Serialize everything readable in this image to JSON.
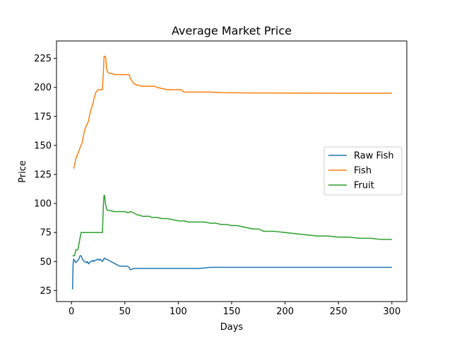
{
  "chart_data": {
    "type": "line",
    "title": "Average Market Price",
    "xlabel": "Days",
    "ylabel": "Price",
    "xlim": [
      -14,
      314
    ],
    "ylim": [
      15.5,
      240
    ],
    "xticks": [
      0,
      50,
      100,
      150,
      200,
      250,
      300
    ],
    "yticks": [
      25,
      50,
      75,
      100,
      125,
      150,
      175,
      200,
      225
    ],
    "grid": false,
    "legend_position": "center-right",
    "series": [
      {
        "name": "Raw Fish",
        "color": "#1f77b4",
        "points": [
          [
            1,
            26
          ],
          [
            1.5,
            47
          ],
          [
            2,
            52
          ],
          [
            3,
            51
          ],
          [
            4,
            49
          ],
          [
            5,
            50
          ],
          [
            6,
            51
          ],
          [
            7,
            52
          ],
          [
            8,
            55
          ],
          [
            9,
            55
          ],
          [
            10,
            53
          ],
          [
            11,
            51
          ],
          [
            12,
            50
          ],
          [
            14,
            49
          ],
          [
            15,
            50
          ],
          [
            16,
            48
          ],
          [
            17,
            49
          ],
          [
            18,
            50
          ],
          [
            19,
            50
          ],
          [
            20,
            51
          ],
          [
            21,
            50
          ],
          [
            22,
            51
          ],
          [
            23,
            51
          ],
          [
            24,
            52
          ],
          [
            25,
            52
          ],
          [
            26,
            51
          ],
          [
            27,
            52
          ],
          [
            28,
            51
          ],
          [
            29,
            50
          ],
          [
            30,
            52
          ],
          [
            31,
            53
          ],
          [
            32,
            52
          ],
          [
            33,
            52
          ],
          [
            35,
            51
          ],
          [
            37,
            50
          ],
          [
            39,
            49
          ],
          [
            41,
            48
          ],
          [
            43,
            47
          ],
          [
            45,
            46
          ],
          [
            47,
            46
          ],
          [
            50,
            46
          ],
          [
            52,
            46
          ],
          [
            54,
            45
          ],
          [
            55,
            43
          ],
          [
            56,
            43
          ],
          [
            58,
            44
          ],
          [
            60,
            44
          ],
          [
            62,
            44
          ],
          [
            65,
            44
          ],
          [
            70,
            44
          ],
          [
            75,
            44
          ],
          [
            80,
            44
          ],
          [
            85,
            44
          ],
          [
            88,
            44
          ],
          [
            90,
            44
          ],
          [
            95,
            44
          ],
          [
            100,
            44
          ],
          [
            105,
            44
          ],
          [
            108,
            44
          ],
          [
            110,
            44
          ],
          [
            120,
            44
          ],
          [
            130,
            45
          ],
          [
            140,
            45
          ],
          [
            150,
            45
          ],
          [
            160,
            45
          ],
          [
            170,
            45
          ],
          [
            180,
            45
          ],
          [
            190,
            45
          ],
          [
            200,
            45
          ],
          [
            220,
            45
          ],
          [
            240,
            45
          ],
          [
            260,
            45
          ],
          [
            280,
            45
          ],
          [
            300,
            45
          ]
        ]
      },
      {
        "name": "Fish",
        "color": "#ff7f0e",
        "points": [
          [
            2,
            130
          ],
          [
            3,
            133
          ],
          [
            4,
            138
          ],
          [
            5,
            141
          ],
          [
            6,
            143
          ],
          [
            7,
            145
          ],
          [
            8,
            148
          ],
          [
            9,
            150
          ],
          [
            10,
            152
          ],
          [
            11,
            157
          ],
          [
            12,
            162
          ],
          [
            13,
            165
          ],
          [
            14,
            167
          ],
          [
            15,
            169
          ],
          [
            16,
            171
          ],
          [
            17,
            176
          ],
          [
            18,
            180
          ],
          [
            19,
            183
          ],
          [
            20,
            185
          ],
          [
            21,
            190
          ],
          [
            22,
            193
          ],
          [
            23,
            196
          ],
          [
            24,
            197
          ],
          [
            25,
            198
          ],
          [
            26,
            198
          ],
          [
            27,
            198
          ],
          [
            28,
            198
          ],
          [
            29,
            198
          ],
          [
            30,
            215
          ],
          [
            30.5,
            226
          ],
          [
            31,
            227
          ],
          [
            32,
            226
          ],
          [
            33,
            216
          ],
          [
            34,
            213
          ],
          [
            36,
            212
          ],
          [
            38,
            212
          ],
          [
            40,
            211
          ],
          [
            42,
            211
          ],
          [
            45,
            211
          ],
          [
            48,
            211
          ],
          [
            50,
            211
          ],
          [
            52,
            211
          ],
          [
            54,
            211
          ],
          [
            55,
            208
          ],
          [
            57,
            205
          ],
          [
            59,
            203
          ],
          [
            61,
            202
          ],
          [
            63,
            202
          ],
          [
            65,
            201
          ],
          [
            70,
            201
          ],
          [
            75,
            201
          ],
          [
            78,
            201
          ],
          [
            80,
            200
          ],
          [
            85,
            199
          ],
          [
            90,
            198
          ],
          [
            95,
            198
          ],
          [
            100,
            198
          ],
          [
            103,
            198
          ],
          [
            105,
            196
          ],
          [
            107,
            196
          ],
          [
            110,
            196
          ],
          [
            120,
            196
          ],
          [
            130,
            196
          ],
          [
            140,
            195.5
          ],
          [
            150,
            195.4
          ],
          [
            160,
            195.3
          ],
          [
            170,
            195.2
          ],
          [
            180,
            195.2
          ],
          [
            200,
            195.1
          ],
          [
            250,
            195
          ],
          [
            300,
            195
          ]
        ]
      },
      {
        "name": "Fruit",
        "color": "#2ca02c",
        "points": [
          [
            1,
            55
          ],
          [
            2,
            55
          ],
          [
            3,
            55
          ],
          [
            4,
            60
          ],
          [
            5,
            60
          ],
          [
            6,
            60
          ],
          [
            7,
            65
          ],
          [
            8,
            70
          ],
          [
            9,
            75
          ],
          [
            12,
            75
          ],
          [
            15,
            75
          ],
          [
            20,
            75
          ],
          [
            25,
            75
          ],
          [
            29,
            75
          ],
          [
            30,
            100
          ],
          [
            30.5,
            107
          ],
          [
            31,
            107
          ],
          [
            32,
            99
          ],
          [
            33,
            95
          ],
          [
            34,
            94
          ],
          [
            36,
            94
          ],
          [
            40,
            93
          ],
          [
            45,
            93
          ],
          [
            50,
            93
          ],
          [
            53,
            92
          ],
          [
            55,
            93
          ],
          [
            58,
            92
          ],
          [
            60,
            91
          ],
          [
            62,
            90
          ],
          [
            64,
            90
          ],
          [
            66,
            89
          ],
          [
            70,
            89
          ],
          [
            73,
            89
          ],
          [
            75,
            88
          ],
          [
            80,
            88
          ],
          [
            85,
            87
          ],
          [
            90,
            87
          ],
          [
            95,
            86
          ],
          [
            100,
            85
          ],
          [
            105,
            85
          ],
          [
            110,
            84
          ],
          [
            115,
            84
          ],
          [
            120,
            84
          ],
          [
            125,
            84
          ],
          [
            130,
            83
          ],
          [
            135,
            83
          ],
          [
            140,
            82
          ],
          [
            145,
            82
          ],
          [
            150,
            81
          ],
          [
            155,
            81
          ],
          [
            160,
            80
          ],
          [
            165,
            79
          ],
          [
            170,
            78
          ],
          [
            175,
            78
          ],
          [
            178,
            77
          ],
          [
            180,
            76
          ],
          [
            190,
            76
          ],
          [
            200,
            75
          ],
          [
            210,
            74
          ],
          [
            220,
            73
          ],
          [
            230,
            72
          ],
          [
            240,
            72
          ],
          [
            250,
            71
          ],
          [
            260,
            71
          ],
          [
            270,
            70
          ],
          [
            280,
            70
          ],
          [
            290,
            69
          ],
          [
            300,
            69
          ]
        ]
      }
    ]
  }
}
